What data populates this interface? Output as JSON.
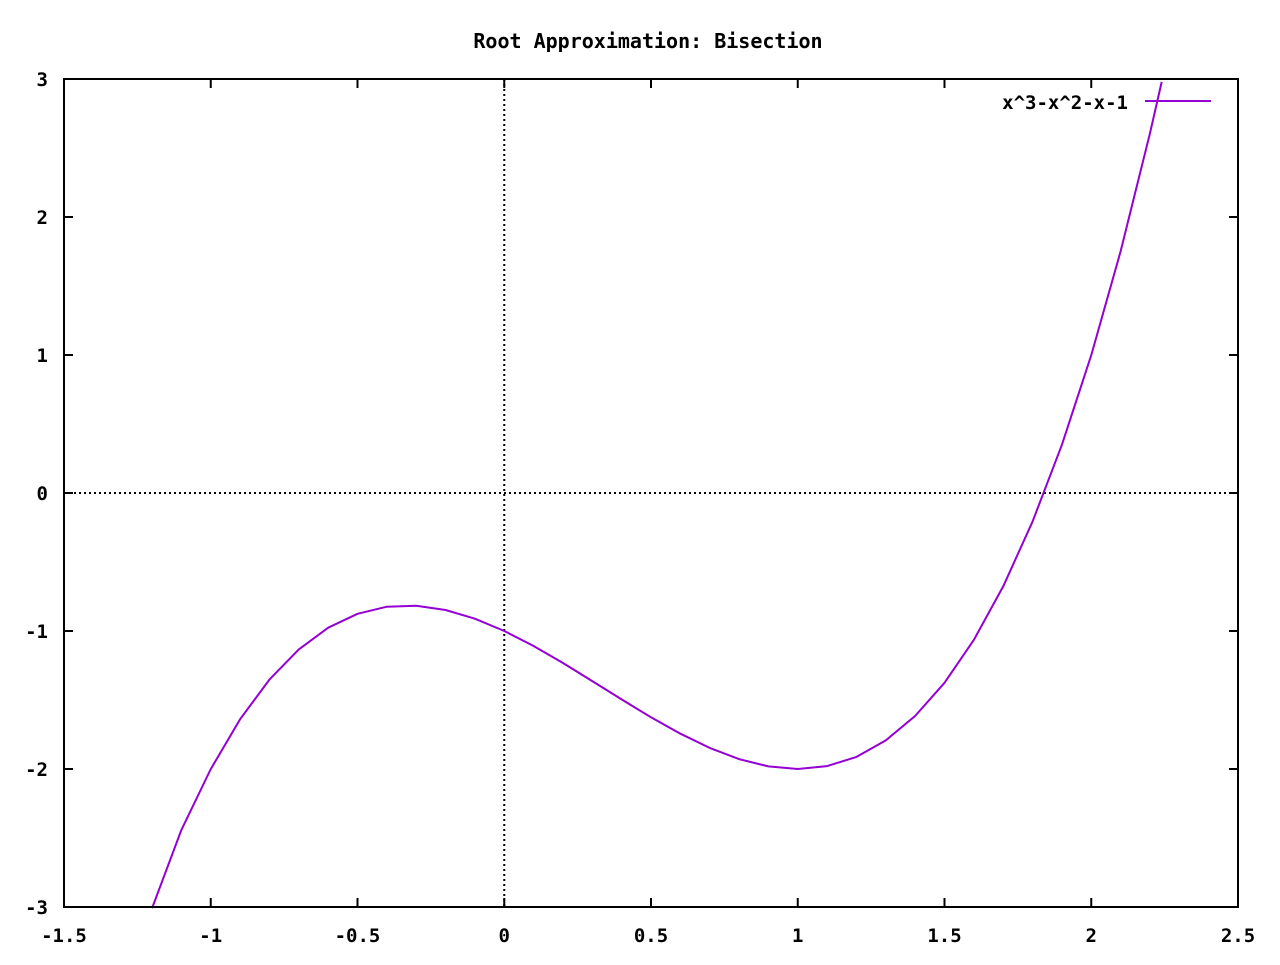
{
  "chart_data": {
    "type": "line",
    "title": "Root Approximation: Bisection",
    "xlabel": "",
    "ylabel": "",
    "xlim": [
      -1.5,
      2.5
    ],
    "ylim": [
      -3,
      3
    ],
    "x_ticks": [
      -1.5,
      -1,
      -0.5,
      0,
      0.5,
      1,
      1.5,
      2,
      2.5
    ],
    "y_ticks": [
      -3,
      -2,
      -1,
      0,
      1,
      2,
      3
    ],
    "x_tick_labels": [
      "-1.5",
      "-1",
      "-0.5",
      "0",
      "0.5",
      "1",
      "1.5",
      "2",
      "2.5"
    ],
    "y_tick_labels": [
      "-3",
      "-2",
      "-1",
      "0",
      "1",
      "2",
      "3"
    ],
    "grid": false,
    "zero_axes": true,
    "legend_position": "top-right",
    "series": [
      {
        "name": "x^3-x^2-x-1",
        "color": "#9400d3",
        "x": [
          -1.2,
          -1.1,
          -1.0,
          -0.9,
          -0.8,
          -0.7,
          -0.6,
          -0.5,
          -0.4,
          -0.3,
          -0.2,
          -0.1,
          0.0,
          0.1,
          0.2,
          0.3,
          0.4,
          0.5,
          0.6,
          0.7,
          0.8,
          0.9,
          1.0,
          1.1,
          1.2,
          1.3,
          1.4,
          1.5,
          1.6,
          1.7,
          1.8,
          1.9,
          2.0,
          2.1,
          2.2,
          2.24
        ],
        "y": [
          -3.008,
          -2.441,
          -2.0,
          -1.639,
          -1.352,
          -1.133,
          -0.976,
          -0.875,
          -0.824,
          -0.817,
          -0.848,
          -0.911,
          -1.0,
          -1.109,
          -1.232,
          -1.363,
          -1.496,
          -1.625,
          -1.744,
          -1.847,
          -1.928,
          -1.981,
          -2.0,
          -1.979,
          -1.912,
          -1.793,
          -1.616,
          -1.375,
          -1.064,
          -0.677,
          -0.208,
          0.349,
          1.0,
          1.751,
          2.608,
          2.979
        ]
      }
    ]
  }
}
